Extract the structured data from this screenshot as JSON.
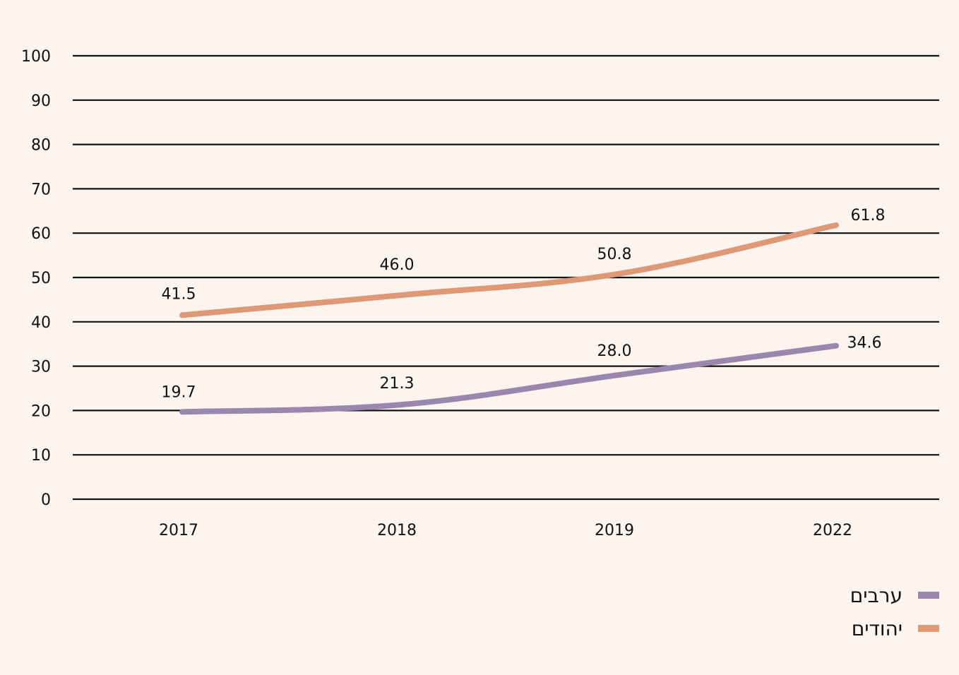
{
  "chart_data": {
    "type": "line",
    "categories": [
      "2017",
      "2018",
      "2019",
      "2022"
    ],
    "ylim": [
      0,
      100
    ],
    "yticks": [
      0,
      10,
      20,
      30,
      40,
      50,
      60,
      70,
      80,
      90,
      100
    ],
    "grid": true,
    "legend_position": "bottom-right",
    "series": [
      {
        "name": "ערבים",
        "color": "#9b87ae",
        "values": [
          19.7,
          21.3,
          28.0,
          34.6
        ],
        "labels": [
          "19.7",
          "21.3",
          "28.0",
          "34.6"
        ]
      },
      {
        "name": "יהודים",
        "color": "#de9a77",
        "values": [
          41.5,
          46.0,
          50.8,
          61.8
        ],
        "labels": [
          "41.5",
          "46.0",
          "50.8",
          "61.8"
        ]
      }
    ]
  }
}
